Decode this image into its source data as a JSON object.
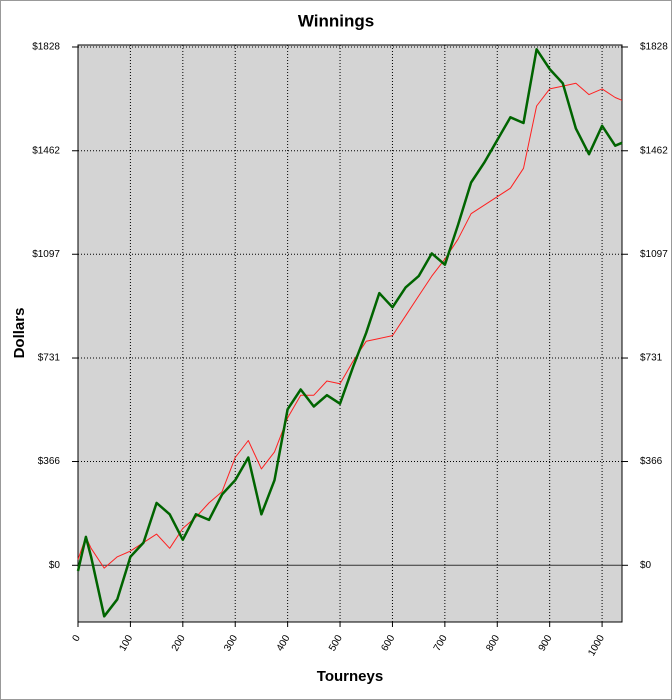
{
  "chart_data": {
    "type": "line",
    "title": "Winnings",
    "x_label": "Tourneys",
    "y_label": "Dollars",
    "x": [
      0,
      15,
      25,
      50,
      75,
      100,
      125,
      150,
      175,
      200,
      225,
      250,
      275,
      300,
      325,
      350,
      375,
      400,
      425,
      450,
      475,
      500,
      525,
      550,
      575,
      600,
      625,
      650,
      675,
      700,
      725,
      750,
      775,
      800,
      825,
      850,
      875,
      900,
      925,
      950,
      975,
      1000,
      1025,
      1038
    ],
    "series": [
      {
        "name": "Red",
        "color": "#ff2020",
        "width": 1,
        "values": [
          20,
          100,
          60,
          -10,
          30,
          50,
          80,
          110,
          60,
          130,
          170,
          220,
          260,
          380,
          440,
          340,
          400,
          520,
          600,
          600,
          650,
          640,
          720,
          790,
          800,
          810,
          880,
          950,
          1020,
          1080,
          1150,
          1240,
          1270,
          1300,
          1330,
          1400,
          1620,
          1680,
          1690,
          1700,
          1660,
          1680,
          1650,
          1640
        ]
      },
      {
        "name": "Green",
        "color": "#006400",
        "width": 2.5,
        "values": [
          -20,
          100,
          30,
          -180,
          -120,
          30,
          80,
          220,
          180,
          90,
          180,
          160,
          250,
          300,
          380,
          180,
          300,
          550,
          620,
          560,
          600,
          570,
          700,
          820,
          960,
          910,
          980,
          1020,
          1100,
          1060,
          1200,
          1350,
          1420,
          1500,
          1580,
          1560,
          1820,
          1750,
          1700,
          1540,
          1450,
          1550,
          1480,
          1490
        ]
      }
    ],
    "xlim": [
      0,
      1038
    ],
    "xticks": [
      0,
      100,
      200,
      300,
      400,
      500,
      600,
      700,
      800,
      900,
      1000
    ],
    "ylim": [
      -200,
      1835
    ],
    "yticks": [
      {
        "value": 0,
        "label": "$0"
      },
      {
        "value": 366,
        "label": "$366"
      },
      {
        "value": 731,
        "label": "$731"
      },
      {
        "value": 1097,
        "label": "$1097"
      },
      {
        "value": 1462,
        "label": "$1462"
      },
      {
        "value": 1828,
        "label": "$1828"
      }
    ],
    "grid": true,
    "zero_line": true
  }
}
